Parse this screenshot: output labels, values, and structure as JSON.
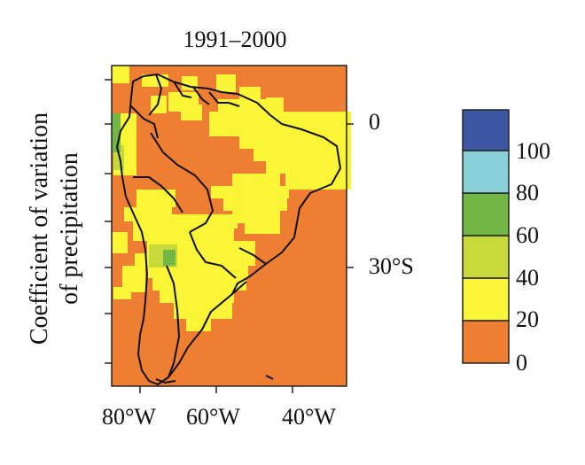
{
  "title": "1991–2000",
  "ylabel_line1": "Coefficient of variation",
  "ylabel_line2": "of precipitation",
  "x_ticks": [
    "80°W",
    "60°W",
    "40°W"
  ],
  "y_ticks": [
    "0",
    "30°S"
  ],
  "legend": {
    "labels": [
      "0",
      "20",
      "40",
      "60",
      "80",
      "100"
    ],
    "classes": [
      {
        "range": "0–20",
        "color": "#EE7E31"
      },
      {
        "range": "20–40",
        "color": "#FAF537"
      },
      {
        "range": "40–60",
        "color": "#C8DA3A"
      },
      {
        "range": "60–80",
        "color": "#72B746"
      },
      {
        "range": "80–100",
        "color": "#8AD0D8"
      },
      {
        "range": "100+",
        "color": "#3D56A3"
      }
    ]
  },
  "colors": {
    "orange": "#EE7E31",
    "yellow": "#FAF537",
    "yellow_green": "#C8DA3A",
    "green": "#72B746",
    "cyan": "#8AD0D8",
    "blue": "#3D56A3",
    "coastline": "#111111"
  }
}
